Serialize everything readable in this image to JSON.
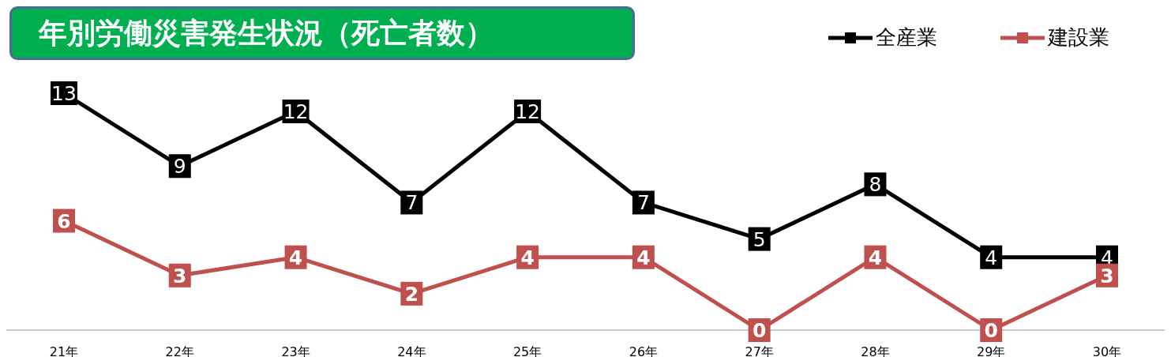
{
  "chart_data": {
    "type": "line",
    "title": "年別労働災害発生状況（死亡者数）",
    "categories": [
      "21年",
      "22年",
      "23年",
      "24年",
      "25年",
      "26年",
      "27年",
      "28年",
      "29年",
      "30年"
    ],
    "series": [
      {
        "name": "全産業",
        "color": "#000000",
        "values": [
          13,
          9,
          12,
          7,
          12,
          7,
          5,
          8,
          4,
          4
        ]
      },
      {
        "name": "建設業",
        "color": "#c0504d",
        "values": [
          6,
          3,
          4,
          2,
          4,
          4,
          0,
          4,
          0,
          3
        ]
      }
    ],
    "data_labels": true,
    "marker": "square",
    "line_style": "solid",
    "legend": "top right",
    "grid": false
  }
}
